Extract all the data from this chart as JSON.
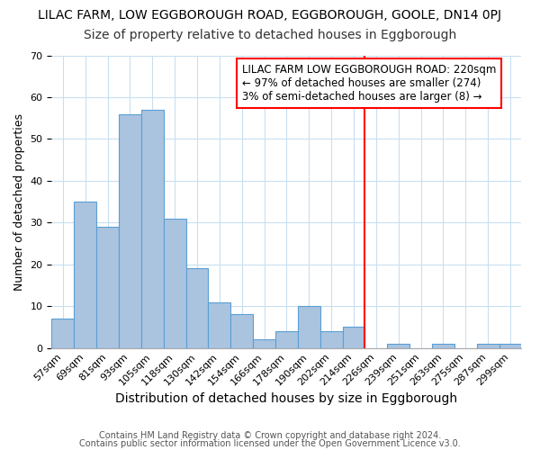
{
  "title": "LILAC FARM, LOW EGGBOROUGH ROAD, EGGBOROUGH, GOOLE, DN14 0PJ",
  "subtitle": "Size of property relative to detached houses in Eggborough",
  "xlabel": "Distribution of detached houses by size in Eggborough",
  "ylabel": "Number of detached properties",
  "bin_labels": [
    "57sqm",
    "69sqm",
    "81sqm",
    "93sqm",
    "105sqm",
    "118sqm",
    "130sqm",
    "142sqm",
    "154sqm",
    "166sqm",
    "178sqm",
    "190sqm",
    "202sqm",
    "214sqm",
    "226sqm",
    "239sqm",
    "251sqm",
    "263sqm",
    "275sqm",
    "287sqm",
    "299sqm"
  ],
  "bar_heights": [
    7,
    35,
    29,
    56,
    57,
    31,
    19,
    11,
    8,
    2,
    4,
    10,
    4,
    5,
    0,
    1,
    0,
    1,
    0,
    1,
    1
  ],
  "bar_color": "#aac4e0",
  "bar_edge_color": "#5a9fd4",
  "vline_x_index": 14,
  "vline_color": "red",
  "annotation_title": "LILAC FARM LOW EGGBOROUGH ROAD: 220sqm",
  "annotation_line1": "← 97% of detached houses are smaller (274)",
  "annotation_line2": "3% of semi-detached houses are larger (8) →",
  "annotation_box_color": "white",
  "annotation_box_edge_color": "red",
  "ylim": [
    0,
    70
  ],
  "yticks": [
    0,
    10,
    20,
    30,
    40,
    50,
    60,
    70
  ],
  "footer1": "Contains HM Land Registry data © Crown copyright and database right 2024.",
  "footer2": "Contains public sector information licensed under the Open Government Licence v3.0.",
  "title_fontsize": 10,
  "subtitle_fontsize": 10,
  "xlabel_fontsize": 10,
  "ylabel_fontsize": 9,
  "tick_fontsize": 8,
  "annotation_fontsize": 8.5,
  "footer_fontsize": 7
}
